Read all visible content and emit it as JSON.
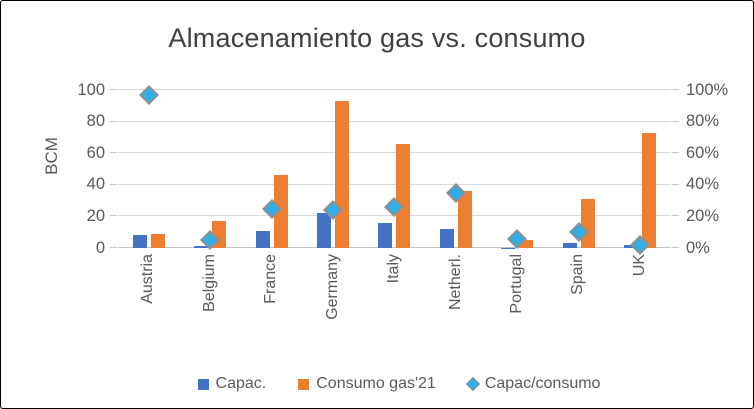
{
  "chart_data": {
    "type": "bar",
    "title": "Almacenamiento gas vs. consumo",
    "ylabel": "BCM",
    "categories": [
      "Austria",
      "Belgium",
      "France",
      "Germany",
      "Italy",
      "Netherl.",
      "Portugal",
      "Spain",
      "UK"
    ],
    "series": [
      {
        "name": "Capac.",
        "type": "bar",
        "axis": "left",
        "color": "#4472C4",
        "values": [
          8,
          1,
          11,
          22,
          16,
          12,
          0.3,
          3,
          2
        ]
      },
      {
        "name": "Consumo gas'21",
        "type": "bar",
        "axis": "left",
        "color": "#ED7D31",
        "values": [
          9,
          17,
          46,
          93,
          66,
          36,
          5,
          31,
          73
        ]
      },
      {
        "name": "Capac/consumo",
        "type": "scatter",
        "marker": "diamond",
        "axis": "right",
        "color": "#30AEE6",
        "marker_border_color": "#8F8F8F",
        "values": [
          97,
          5,
          25,
          24,
          26,
          35,
          6,
          10,
          2
        ]
      }
    ],
    "left_axis": {
      "min": 0,
      "max": 100,
      "ticks": [
        "0",
        "20",
        "40",
        "60",
        "80",
        "100"
      ]
    },
    "right_axis": {
      "min": 0,
      "max": 100,
      "ticks": [
        "0%",
        "20%",
        "40%",
        "60%",
        "80%",
        "100%"
      ]
    },
    "grid": true,
    "legend_position": "bottom",
    "gridline_color": "#D9D9D9",
    "axis_line_color": "#C6C6C6",
    "text_color": "#595959",
    "title_color": "#404040",
    "background_color": "#FFFFFF"
  }
}
